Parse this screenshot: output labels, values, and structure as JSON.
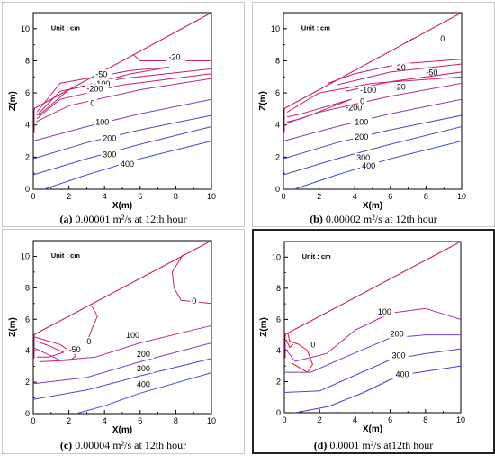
{
  "chart_data": [
    {
      "type": "contour",
      "caption": {
        "letter": "(a)",
        "text": " 0.00001 m²/s at 12th hour"
      },
      "unit_label": "Unit : cm",
      "xlabel": "X(m)",
      "ylabel": "Z(m)",
      "xlim": [
        0,
        10
      ],
      "ylim": [
        0,
        11
      ],
      "xticks": [
        0,
        2,
        4,
        6,
        8,
        10
      ],
      "yticks": [
        0,
        2,
        4,
        6,
        8,
        10
      ],
      "surface": [
        [
          0,
          5.0
        ],
        [
          10,
          11.0
        ]
      ],
      "contours": [
        {
          "level": "-20",
          "color": "#c41e6e",
          "points": [
            [
              5.6,
              8.4
            ],
            [
              6.0,
              8.0
            ],
            [
              10,
              8.0
            ]
          ],
          "label_at": [
            7.6,
            8.05
          ]
        },
        {
          "level": "-50",
          "color": "#c41e6e",
          "points": [
            [
              0.2,
              4.8
            ],
            [
              1.5,
              6.6
            ],
            [
              5.5,
              7.4
            ],
            [
              7.6,
              7.6
            ],
            [
              5.5,
              7.2
            ],
            [
              2,
              6.2
            ],
            [
              0.3,
              4.6
            ]
          ],
          "label_at": [
            3.5,
            7.0
          ]
        },
        {
          "level": "-100",
          "color": "#c41e6e",
          "points": [
            [
              0.2,
              4.6
            ],
            [
              1.5,
              6.1
            ],
            [
              5,
              6.9
            ],
            [
              10,
              7.5
            ]
          ],
          "label_at": [
            3.4,
            6.4
          ]
        },
        {
          "level": "-200",
          "color": "#c41e6e",
          "points": [
            [
              0.2,
              4.4
            ],
            [
              1.5,
              5.6
            ],
            [
              5,
              6.5
            ],
            [
              10,
              7.2
            ]
          ],
          "label_at": [
            3.0,
            6.1
          ]
        },
        {
          "level": "0",
          "color": "#b03095",
          "points": [
            [
              0.15,
              4.2
            ],
            [
              2,
              5.2
            ],
            [
              6,
              6.2
            ],
            [
              10,
              6.9
            ]
          ],
          "label_at": [
            3.2,
            5.2
          ]
        },
        {
          "level": "100",
          "color": "#8040b0",
          "points": [
            [
              0,
              3.0
            ],
            [
              3,
              3.9
            ],
            [
              6,
              4.7
            ],
            [
              10,
              5.6
            ]
          ],
          "label_at": [
            3.5,
            4.0
          ]
        },
        {
          "level": "200",
          "color": "#6040c0",
          "points": [
            [
              0,
              1.9
            ],
            [
              3,
              2.9
            ],
            [
              6,
              3.7
            ],
            [
              10,
              4.6
            ]
          ],
          "label_at": [
            3.9,
            3.0
          ]
        },
        {
          "level": "300",
          "color": "#5048c8",
          "points": [
            [
              0,
              0.9
            ],
            [
              3,
              1.9
            ],
            [
              6,
              2.8
            ],
            [
              10,
              3.9
            ]
          ],
          "label_at": [
            3.9,
            2.0
          ]
        },
        {
          "level": "400",
          "color": "#4050d0",
          "points": [
            [
              0.6,
              0
            ],
            [
              3,
              0.9
            ],
            [
              6,
              1.9
            ],
            [
              10,
              3.0
            ]
          ],
          "label_at": [
            4.9,
            1.4
          ]
        }
      ]
    },
    {
      "type": "contour",
      "caption": {
        "letter": "(b)",
        "text": " 0.00002 m²/s at 12th hour"
      },
      "unit_label": "Unit : cm",
      "xlabel": "X(m)",
      "ylabel": "Z(m)",
      "xlim": [
        0,
        10
      ],
      "ylim": [
        0,
        11
      ],
      "xticks": [
        0,
        2,
        4,
        6,
        8,
        10
      ],
      "yticks": [
        0,
        2,
        4,
        6,
        8,
        10
      ],
      "surface": [
        [
          0,
          5.0
        ],
        [
          10,
          11.0
        ]
      ],
      "contours": [
        {
          "level": "0",
          "color": "#c41e6e",
          "points": [
            [
              6.8,
              9.1
            ],
            [
              7.3,
              9.4
            ]
          ],
          "label_at": [
            8.8,
            9.2
          ]
        },
        {
          "level": "-20",
          "color": "#c41e6e",
          "points": [
            [
              2.5,
              6.6
            ],
            [
              4,
              7.2
            ],
            [
              6.5,
              7.8
            ],
            [
              10,
              8.1
            ]
          ],
          "label_at": [
            6.2,
            7.4
          ]
        },
        {
          "level": "-50",
          "color": "#c41e6e",
          "points": [
            [
              3,
              6.5
            ],
            [
              6,
              7.3
            ],
            [
              10,
              7.8
            ]
          ],
          "label_at": [
            8.0,
            7.1
          ]
        },
        {
          "level": "-20",
          "color": "#c41e6e",
          "points": [
            [
              3.5,
              6.1
            ],
            [
              6,
              6.7
            ],
            [
              10,
              7.3
            ]
          ],
          "label_at": [
            6.2,
            6.2
          ]
        },
        {
          "level": "-100",
          "color": "#c41e6e",
          "points": [
            [
              0.2,
              4.8
            ],
            [
              2,
              6.0
            ],
            [
              5,
              6.6
            ],
            [
              10,
              7.0
            ]
          ],
          "label_at": [
            4.3,
            6.0
          ]
        },
        {
          "level": "-200",
          "color": "#c41e6e",
          "points": [
            [
              0.2,
              4.5
            ],
            [
              1.0,
              4.7
            ],
            [
              3.8,
              5.6
            ],
            [
              1.0,
              4.4
            ],
            [
              0.2,
              4.2
            ]
          ],
          "label_at": [
            3.5,
            4.9
          ]
        },
        {
          "level": "0",
          "color": "#b03095",
          "points": [
            [
              0.15,
              4.1
            ],
            [
              2,
              4.8
            ],
            [
              6,
              5.8
            ],
            [
              10,
              6.6
            ]
          ],
          "label_at": [
            4.3,
            5.3
          ]
        },
        {
          "level": "100",
          "color": "#8040b0",
          "points": [
            [
              0,
              3.0
            ],
            [
              3,
              3.9
            ],
            [
              6,
              4.7
            ],
            [
              10,
              5.6
            ]
          ],
          "label_at": [
            4.0,
            4.0
          ]
        },
        {
          "level": "200",
          "color": "#6040c0",
          "points": [
            [
              0,
              1.9
            ],
            [
              3,
              2.9
            ],
            [
              6,
              3.7
            ],
            [
              10,
              4.6
            ]
          ],
          "label_at": [
            4.0,
            3.1
          ]
        },
        {
          "level": "300",
          "color": "#5048c8",
          "points": [
            [
              0,
              0.9
            ],
            [
              3,
              1.9
            ],
            [
              6,
              2.8
            ],
            [
              10,
              3.9
            ]
          ],
          "label_at": [
            4.1,
            1.8
          ]
        },
        {
          "level": "400",
          "color": "#4050d0",
          "points": [
            [
              0.6,
              0
            ],
            [
              3,
              0.9
            ],
            [
              6,
              1.9
            ],
            [
              10,
              3.0
            ]
          ],
          "label_at": [
            4.4,
            1.3
          ]
        }
      ]
    },
    {
      "type": "contour",
      "caption": {
        "letter": "(c)",
        "text": " 0.00004 m²/s at 12th hour"
      },
      "unit_label": "Unit : cm",
      "xlabel": "X(m)",
      "ylabel": "Z(m)",
      "xlim": [
        0,
        10
      ],
      "ylim": [
        0,
        11
      ],
      "xticks": [
        0,
        2,
        4,
        6,
        8,
        10
      ],
      "yticks": [
        0,
        2,
        4,
        6,
        8,
        10
      ],
      "surface": [
        [
          0,
          5.0
        ],
        [
          10,
          11.0
        ]
      ],
      "contours": [
        {
          "level": "0",
          "color": "#c41e6e",
          "points": [
            [
              8.4,
              10.1
            ],
            [
              7.8,
              9.0
            ],
            [
              7.9,
              8.0
            ],
            [
              8.3,
              7.2
            ],
            [
              10,
              7.0
            ]
          ],
          "label_at": [
            8.9,
            7.0
          ]
        },
        {
          "level": "0",
          "color": "#c41e6e",
          "points": [
            [
              3.3,
              6.8
            ],
            [
              3.6,
              6.2
            ],
            [
              3.3,
              5.4
            ],
            [
              3.1,
              4.8
            ]
          ],
          "label_at": [
            2.9,
            4.4
          ]
        },
        {
          "level": "0",
          "color": "#c41e6e",
          "points": [
            [
              0,
              4.9
            ],
            [
              1.5,
              4.4
            ],
            [
              2.4,
              3.7
            ],
            [
              2.1,
              3.4
            ],
            [
              0.4,
              3.3
            ]
          ],
          "label_at": [
            3.0,
            4.4
          ]
        },
        {
          "level": "-50",
          "color": "#c41e6e",
          "points": [
            [
              0.2,
              4.6
            ],
            [
              0.9,
              4.3
            ],
            [
              1.7,
              3.9
            ],
            [
              0.9,
              3.6
            ],
            [
              0.2,
              3.6
            ]
          ],
          "label_at": [
            2.0,
            3.9
          ]
        },
        {
          "level": "100",
          "color": "#b03095",
          "points": [
            [
              0,
              4.2
            ],
            [
              1.5,
              3.4
            ],
            [
              3.5,
              3.6
            ],
            [
              6,
              4.5
            ],
            [
              10,
              5.6
            ]
          ],
          "label_at": [
            5.2,
            4.8
          ]
        },
        {
          "level": "200",
          "color": "#8040b0",
          "points": [
            [
              0,
              1.9
            ],
            [
              3,
              2.3
            ],
            [
              6,
              3.3
            ],
            [
              10,
              4.5
            ]
          ],
          "label_at": [
            5.8,
            3.6
          ]
        },
        {
          "level": "300",
          "color": "#6040c0",
          "points": [
            [
              0,
              0.9
            ],
            [
              3,
              1.5
            ],
            [
              6,
              2.4
            ],
            [
              10,
              3.5
            ]
          ],
          "label_at": [
            5.8,
            2.7
          ]
        },
        {
          "level": "400",
          "color": "#4050d0",
          "points": [
            [
              2.4,
              0
            ],
            [
              4,
              0.5
            ],
            [
              6,
              1.3
            ],
            [
              10,
              2.6
            ]
          ],
          "label_at": [
            5.8,
            1.7
          ]
        }
      ]
    },
    {
      "type": "contour",
      "caption": {
        "letter": "(d)",
        "text": " 0.0001 m²/s at12th hour"
      },
      "unit_label": "Unit : cm",
      "xlabel": "X(m)",
      "ylabel": "Z(m)",
      "xlim": [
        0,
        10
      ],
      "ylim": [
        0,
        11
      ],
      "xticks": [
        0,
        2,
        4,
        6,
        8,
        10
      ],
      "yticks": [
        0,
        2,
        4,
        6,
        8,
        10
      ],
      "surface": [
        [
          0,
          5.0
        ],
        [
          10,
          11.0
        ]
      ],
      "contours": [
        {
          "level": "0",
          "color": "#e01020",
          "points": [
            [
              0.2,
              5.1
            ],
            [
              0.3,
              4.6
            ],
            [
              0.8,
              4.4
            ],
            [
              1.3,
              4.0
            ],
            [
              1.6,
              3.1
            ],
            [
              1.3,
              2.6
            ],
            [
              0.4,
              3.2
            ]
          ],
          "label_at": [
            1.5,
            4.2
          ]
        },
        {
          "level": "0",
          "color": "#e01020",
          "points": [
            [
              0.1,
              4.7
            ],
            [
              0.3,
              4.2
            ],
            [
              0.5,
              4.4
            ]
          ],
          "label_at": [
            0,
            0
          ]
        },
        {
          "level": "100",
          "color": "#b030a0",
          "points": [
            [
              0,
              4.2
            ],
            [
              0.6,
              3.3
            ],
            [
              2.4,
              3.8
            ],
            [
              4,
              5.3
            ],
            [
              6,
              6.4
            ],
            [
              8,
              6.7
            ],
            [
              10,
              6.0
            ]
          ],
          "label_at": [
            5.3,
            6.3
          ]
        },
        {
          "level": "200",
          "color": "#7a3ec0",
          "points": [
            [
              0,
              2.6
            ],
            [
              1.5,
              2.6
            ],
            [
              3.5,
              3.6
            ],
            [
              6,
              4.8
            ],
            [
              8,
              5.0
            ],
            [
              10,
              5.0
            ]
          ],
          "label_at": [
            6.0,
            4.9
          ]
        },
        {
          "level": "300",
          "color": "#5a3ec8",
          "points": [
            [
              0,
              1.3
            ],
            [
              2,
              1.4
            ],
            [
              4,
              2.4
            ],
            [
              6,
              3.4
            ],
            [
              8,
              3.8
            ],
            [
              10,
              4.1
            ]
          ],
          "label_at": [
            6.1,
            3.5
          ]
        },
        {
          "level": "400",
          "color": "#3a40d0",
          "points": [
            [
              0.6,
              0
            ],
            [
              2.5,
              0.4
            ],
            [
              4.5,
              1.3
            ],
            [
              6.5,
              2.4
            ],
            [
              10,
              3.0
            ]
          ],
          "label_at": [
            6.3,
            2.3
          ]
        }
      ]
    }
  ]
}
